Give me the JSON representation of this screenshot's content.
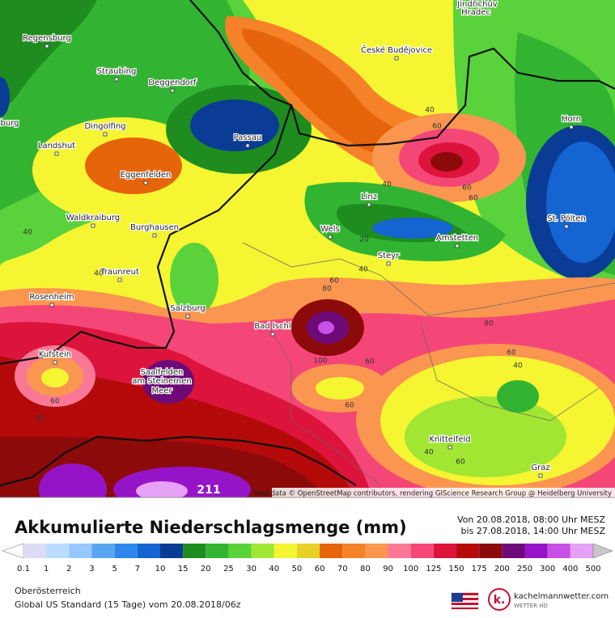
{
  "map": {
    "cities": [
      "Regensburg",
      "Straubing",
      "Deggendorf",
      "Dingolfing",
      "Landshut",
      "Passau",
      "Eggenfelden",
      "Waldkraiburg",
      "Burghausen",
      "Traunreut",
      "Rosenheim",
      "Salzburg",
      "Bad Ischl",
      "Kufstein",
      "Saalfelden",
      "am Steinernen",
      "Meer",
      "České Budějovice",
      "Linz",
      "Wels",
      "Steyr",
      "Amstetten",
      "St. Pölten",
      "Horn",
      "Knittelfeld",
      "Graz",
      "Jindřichův",
      "Hradec",
      "burg"
    ],
    "contour_labels": [
      "40",
      "60",
      "60",
      "60",
      "40",
      "20",
      "40",
      "80",
      "60",
      "100",
      "60",
      "60",
      "80",
      "60",
      "40",
      "40",
      "40",
      "80",
      "60",
      "60",
      "40"
    ],
    "max_label": "211",
    "attribution": "Map data © OpenStreetMap contributors, rendering GIScience Research Group @ Heidelberg University"
  },
  "header": {
    "title": "Akkumulierte Niederschlagsmenge (mm)",
    "valid_from": "Von 20.08.2018, 08:00 Uhr MESZ",
    "valid_to": "bis 27.08.2018, 14:00 Uhr MESZ"
  },
  "legend": {
    "labels": [
      0.1,
      1,
      2,
      3,
      5,
      7,
      10,
      15,
      20,
      25,
      30,
      40,
      50,
      60,
      70,
      80,
      90,
      100,
      125,
      150,
      175,
      200,
      250,
      300,
      400,
      500
    ],
    "colors": [
      "#ffffff",
      "#dcdcf5",
      "#b9dcff",
      "#96c8ff",
      "#5aa5f0",
      "#2d87eb",
      "#1464d2",
      "#0a3c96",
      "#1e8c1e",
      "#32b432",
      "#5ad23c",
      "#a0e632",
      "#f5f532",
      "#e6d228",
      "#e6640a",
      "#f58228",
      "#fa9650",
      "#fa7896",
      "#f54678",
      "#dc143c",
      "#b40a0a",
      "#8c0a0a",
      "#6e0a78",
      "#9614c8",
      "#c850e6",
      "#e6a0f5",
      "#c8c8c8"
    ]
  },
  "footer": {
    "region": "Oberösterreich",
    "model": "Global US Standard (15 Tage) vom 20.08.2018/06z"
  },
  "logo": {
    "name": "kachelmannwetter.com",
    "tagline": "WETTER HD"
  }
}
